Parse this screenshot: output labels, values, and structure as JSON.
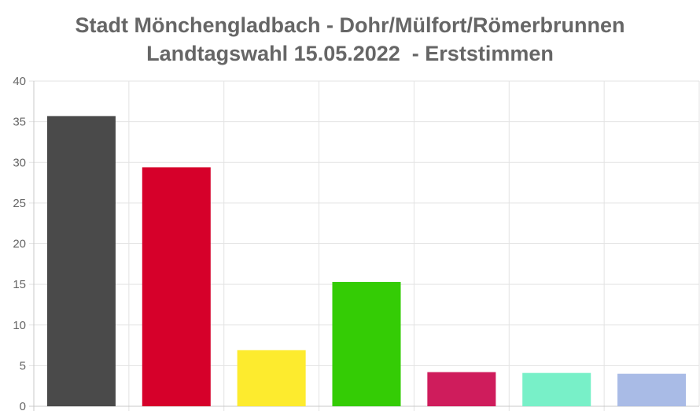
{
  "chart_data": {
    "type": "bar",
    "title": "Stadt Mönchengladbach - Dohr/Mülfort/Römerbrunnen",
    "subtitle": "Landtagswahl 15.05.2022  - Erststimmen",
    "categories": [
      "",
      "",
      "",
      "",
      "",
      "",
      ""
    ],
    "values": [
      35.7,
      29.4,
      6.9,
      15.3,
      4.2,
      4.1,
      4.0
    ],
    "colors": [
      "#4a4a4a",
      "#d6002a",
      "#fdeb2e",
      "#34cc05",
      "#cf1c5c",
      "#78f0c8",
      "#a9bbe6"
    ],
    "ylim": [
      0,
      40
    ],
    "yticks": [
      0,
      5,
      10,
      15,
      20,
      25,
      30,
      35,
      40
    ],
    "grid": true,
    "xlabel": "",
    "ylabel": ""
  }
}
